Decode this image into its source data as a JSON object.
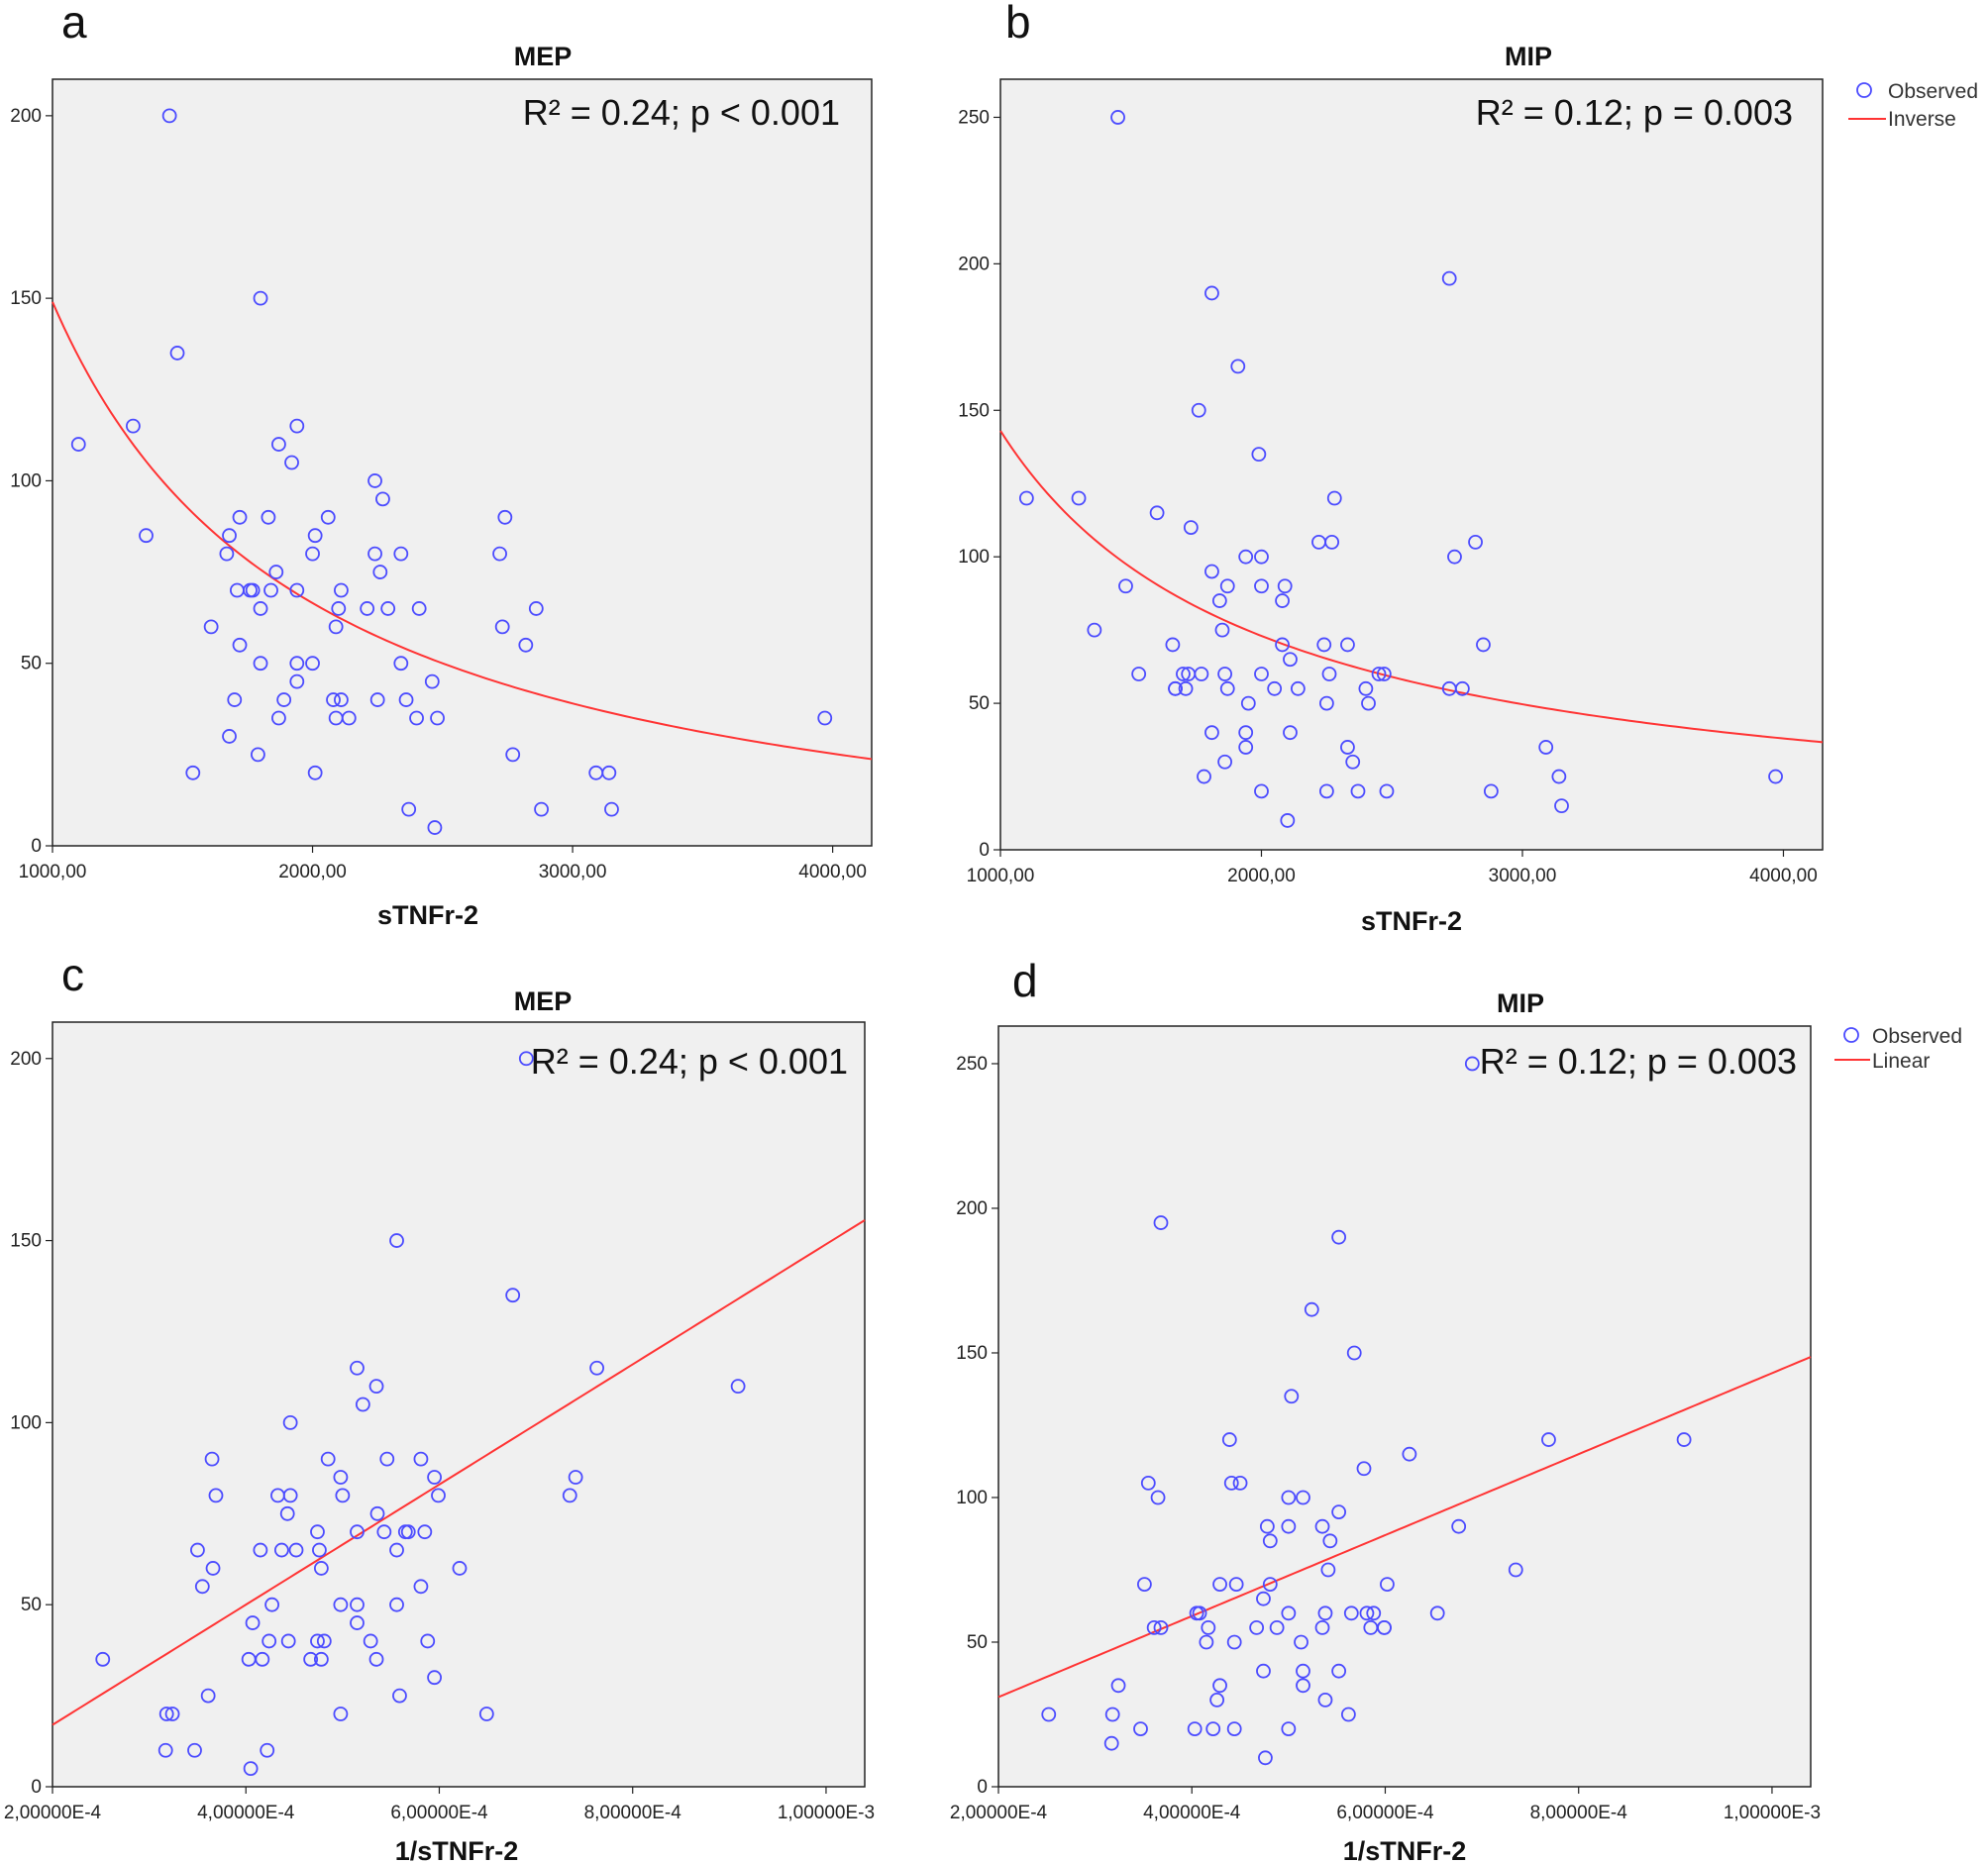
{
  "colors": {
    "observed": "#4b4bff",
    "fit": "#ff3333",
    "plot_bg": "#f0f0f0"
  },
  "chart_data": [
    {
      "panel": "a",
      "type": "scatter",
      "title": "MEP",
      "xlabel": "sTNFr-2",
      "ylabel": "",
      "stat": "R² = 0.24; p < 0.001",
      "fit": "inverse",
      "fit_params": {
        "b0": -16,
        "b1": 165000
      },
      "xlim": [
        1000,
        4150
      ],
      "ylim": [
        0,
        210
      ],
      "x_ticks": [
        1000,
        2000,
        3000,
        4000
      ],
      "x_tick_labels": [
        "1000,00",
        "2000,00",
        "3000,00",
        "4000,00"
      ],
      "y_ticks": [
        0,
        50,
        100,
        150,
        200
      ],
      "y_tick_labels": [
        "0",
        "50",
        "100",
        "150",
        "200"
      ],
      "legend": null,
      "points": [
        [
          1450,
          200
        ],
        [
          1800,
          150
        ],
        [
          1480,
          135
        ],
        [
          1310,
          115
        ],
        [
          1940,
          115
        ],
        [
          1100,
          110
        ],
        [
          1870,
          110
        ],
        [
          1920,
          105
        ],
        [
          2240,
          100
        ],
        [
          1360,
          85
        ],
        [
          2270,
          95
        ],
        [
          1720,
          90
        ],
        [
          1830,
          90
        ],
        [
          2060,
          90
        ],
        [
          2740,
          90
        ],
        [
          1680,
          85
        ],
        [
          2010,
          85
        ],
        [
          1670,
          80
        ],
        [
          2000,
          80
        ],
        [
          2240,
          80
        ],
        [
          2340,
          80
        ],
        [
          2720,
          80
        ],
        [
          1860,
          75
        ],
        [
          2260,
          75
        ],
        [
          1710,
          70
        ],
        [
          1760,
          70
        ],
        [
          1770,
          70
        ],
        [
          1840,
          70
        ],
        [
          1940,
          70
        ],
        [
          2110,
          70
        ],
        [
          1800,
          65
        ],
        [
          2100,
          65
        ],
        [
          2210,
          65
        ],
        [
          2290,
          65
        ],
        [
          2410,
          65
        ],
        [
          2860,
          65
        ],
        [
          1610,
          60
        ],
        [
          2090,
          60
        ],
        [
          2730,
          60
        ],
        [
          1720,
          55
        ],
        [
          2820,
          55
        ],
        [
          1800,
          50
        ],
        [
          1940,
          50
        ],
        [
          2000,
          50
        ],
        [
          2340,
          50
        ],
        [
          1940,
          45
        ],
        [
          2460,
          45
        ],
        [
          1700,
          40
        ],
        [
          1890,
          40
        ],
        [
          2080,
          40
        ],
        [
          2110,
          40
        ],
        [
          2250,
          40
        ],
        [
          2360,
          40
        ],
        [
          1680,
          30
        ],
        [
          1870,
          35
        ],
        [
          2090,
          35
        ],
        [
          2140,
          35
        ],
        [
          2400,
          35
        ],
        [
          2480,
          35
        ],
        [
          3970,
          35
        ],
        [
          1790,
          25
        ],
        [
          2770,
          25
        ],
        [
          1540,
          20
        ],
        [
          2010,
          20
        ],
        [
          3090,
          20
        ],
        [
          3140,
          20
        ],
        [
          2370,
          10
        ],
        [
          2880,
          10
        ],
        [
          3150,
          10
        ],
        [
          2470,
          5
        ]
      ]
    },
    {
      "panel": "b",
      "type": "scatter",
      "title": "MIP",
      "xlabel": "sTNFr-2",
      "ylabel": "",
      "stat": "R² = 0.12; p = 0.003",
      "fit": "inverse",
      "fit_params": {
        "b0": 3,
        "b1": 140000
      },
      "xlim": [
        1000,
        4150
      ],
      "ylim": [
        0,
        263
      ],
      "x_ticks": [
        1000,
        2000,
        3000,
        4000
      ],
      "x_tick_labels": [
        "1000,00",
        "2000,00",
        "3000,00",
        "4000,00"
      ],
      "y_ticks": [
        0,
        50,
        100,
        150,
        200,
        250
      ],
      "y_tick_labels": [
        "0",
        "50",
        "100",
        "150",
        "200",
        "250"
      ],
      "legend": [
        "Observed",
        "Inverse"
      ],
      "points": [
        [
          1450,
          250
        ],
        [
          2720,
          195
        ],
        [
          1810,
          190
        ],
        [
          1910,
          165
        ],
        [
          1760,
          150
        ],
        [
          1990,
          135
        ],
        [
          1100,
          120
        ],
        [
          1300,
          120
        ],
        [
          2280,
          120
        ],
        [
          1600,
          115
        ],
        [
          1730,
          110
        ],
        [
          2220,
          105
        ],
        [
          2270,
          105
        ],
        [
          2820,
          105
        ],
        [
          1940,
          100
        ],
        [
          2000,
          100
        ],
        [
          2740,
          100
        ],
        [
          1810,
          95
        ],
        [
          1480,
          90
        ],
        [
          1870,
          90
        ],
        [
          2000,
          90
        ],
        [
          2090,
          90
        ],
        [
          1840,
          85
        ],
        [
          2080,
          85
        ],
        [
          1360,
          75
        ],
        [
          1850,
          75
        ],
        [
          1660,
          70
        ],
        [
          2080,
          70
        ],
        [
          2240,
          70
        ],
        [
          2330,
          70
        ],
        [
          2850,
          70
        ],
        [
          2110,
          65
        ],
        [
          1530,
          60
        ],
        [
          1700,
          60
        ],
        [
          1720,
          60
        ],
        [
          1770,
          60
        ],
        [
          1860,
          60
        ],
        [
          2000,
          60
        ],
        [
          2260,
          60
        ],
        [
          2450,
          60
        ],
        [
          2470,
          60
        ],
        [
          1670,
          55
        ],
        [
          1670,
          55
        ],
        [
          1710,
          55
        ],
        [
          1870,
          55
        ],
        [
          2050,
          55
        ],
        [
          2140,
          55
        ],
        [
          2400,
          55
        ],
        [
          2720,
          55
        ],
        [
          2770,
          55
        ],
        [
          1950,
          50
        ],
        [
          2250,
          50
        ],
        [
          2410,
          50
        ],
        [
          1810,
          40
        ],
        [
          1940,
          40
        ],
        [
          2110,
          40
        ],
        [
          1940,
          35
        ],
        [
          2330,
          35
        ],
        [
          3090,
          35
        ],
        [
          1860,
          30
        ],
        [
          2350,
          30
        ],
        [
          1780,
          25
        ],
        [
          3140,
          25
        ],
        [
          3970,
          25
        ],
        [
          2000,
          20
        ],
        [
          2250,
          20
        ],
        [
          2370,
          20
        ],
        [
          2480,
          20
        ],
        [
          2880,
          20
        ],
        [
          3150,
          15
        ],
        [
          2100,
          10
        ]
      ]
    },
    {
      "panel": "c",
      "type": "scatter",
      "title": "MEP",
      "xlabel": "1/sTNFr-2",
      "ylabel": "",
      "stat": "R² = 0.24; p < 0.001",
      "fit": "linear",
      "fit_params": {
        "b0": -16,
        "b1": 165000
      },
      "xlim": [
        0.0002,
        0.00104
      ],
      "ylim": [
        0,
        210
      ],
      "x_ticks": [
        0.0002,
        0.0004,
        0.0006,
        0.0008,
        0.001
      ],
      "x_tick_labels": [
        "2,00000E-4",
        "4,00000E-4",
        "6,00000E-4",
        "8,00000E-4",
        "1,00000E-3"
      ],
      "y_ticks": [
        0,
        50,
        100,
        150,
        200
      ],
      "y_tick_labels": [
        "0",
        "50",
        "100",
        "150",
        "200"
      ],
      "legend": null,
      "points": [
        [
          0.00069,
          200
        ],
        [
          0.000556,
          150
        ],
        [
          0.000676,
          135
        ],
        [
          0.000763,
          115
        ],
        [
          0.000515,
          115
        ],
        [
          0.000909,
          110
        ],
        [
          0.000535,
          110
        ],
        [
          0.000521,
          105
        ],
        [
          0.000446,
          100
        ],
        [
          0.000741,
          85
        ],
        [
          0.000546,
          90
        ],
        [
          0.000365,
          90
        ],
        [
          0.000485,
          90
        ],
        [
          0.000581,
          90
        ],
        [
          0.000595,
          85
        ],
        [
          0.000498,
          85
        ],
        [
          0.0005,
          80
        ],
        [
          0.000599,
          80
        ],
        [
          0.000433,
          80
        ],
        [
          0.000446,
          80
        ],
        [
          0.000369,
          80
        ],
        [
          0.000735,
          80
        ],
        [
          0.000443,
          75
        ],
        [
          0.000536,
          75
        ],
        [
          0.000585,
          70
        ],
        [
          0.000568,
          70
        ],
        [
          0.000565,
          70
        ],
        [
          0.000543,
          70
        ],
        [
          0.000515,
          70
        ],
        [
          0.000474,
          70
        ],
        [
          0.000556,
          65
        ],
        [
          0.000476,
          65
        ],
        [
          0.000452,
          65
        ],
        [
          0.000437,
          65
        ],
        [
          0.000415,
          65
        ],
        [
          0.00035,
          65
        ],
        [
          0.000621,
          60
        ],
        [
          0.000478,
          60
        ],
        [
          0.000366,
          60
        ],
        [
          0.000581,
          55
        ],
        [
          0.000355,
          55
        ],
        [
          0.000556,
          50
        ],
        [
          0.000515,
          50
        ],
        [
          0.000498,
          50
        ],
        [
          0.000427,
          50
        ],
        [
          0.000515,
          45
        ],
        [
          0.000407,
          45
        ],
        [
          0.000588,
          40
        ],
        [
          0.000529,
          40
        ],
        [
          0.000481,
          40
        ],
        [
          0.000474,
          40
        ],
        [
          0.000444,
          40
        ],
        [
          0.000424,
          40
        ],
        [
          0.000595,
          30
        ],
        [
          0.000535,
          35
        ],
        [
          0.000478,
          35
        ],
        [
          0.000467,
          35
        ],
        [
          0.000417,
          35
        ],
        [
          0.000403,
          35
        ],
        [
          0.000252,
          35
        ],
        [
          0.000559,
          25
        ],
        [
          0.000361,
          25
        ],
        [
          0.000649,
          20
        ],
        [
          0.000498,
          20
        ],
        [
          0.000324,
          20
        ],
        [
          0.000318,
          20
        ],
        [
          0.000422,
          10
        ],
        [
          0.000347,
          10
        ],
        [
          0.000317,
          10
        ],
        [
          0.000405,
          5
        ]
      ]
    },
    {
      "panel": "d",
      "type": "scatter",
      "title": "MIP",
      "xlabel": "1/sTNFr-2",
      "ylabel": "",
      "stat": "R² = 0.12; p = 0.003",
      "fit": "linear",
      "fit_params": {
        "b0": 3,
        "b1": 140000
      },
      "xlim": [
        0.0002,
        0.00104
      ],
      "ylim": [
        0,
        263
      ],
      "x_ticks": [
        0.0002,
        0.0004,
        0.0006,
        0.0008,
        0.001
      ],
      "x_tick_labels": [
        "2,00000E-4",
        "4,00000E-4",
        "6,00000E-4",
        "8,00000E-4",
        "1,00000E-3"
      ],
      "y_ticks": [
        0,
        50,
        100,
        150,
        200,
        250
      ],
      "y_tick_labels": [
        "0",
        "50",
        "100",
        "150",
        "200",
        "250"
      ],
      "legend": [
        "Observed",
        "Linear"
      ],
      "points": [
        [
          0.00069,
          250
        ],
        [
          0.000368,
          195
        ],
        [
          0.000552,
          190
        ],
        [
          0.000524,
          165
        ],
        [
          0.000568,
          150
        ],
        [
          0.000503,
          135
        ],
        [
          0.000909,
          120
        ],
        [
          0.000769,
          120
        ],
        [
          0.000439,
          120
        ],
        [
          0.000625,
          115
        ],
        [
          0.000578,
          110
        ],
        [
          0.00045,
          105
        ],
        [
          0.000441,
          105
        ],
        [
          0.000355,
          105
        ],
        [
          0.000515,
          100
        ],
        [
          0.0005,
          100
        ],
        [
          0.000365,
          100
        ],
        [
          0.000552,
          95
        ],
        [
          0.000676,
          90
        ],
        [
          0.000535,
          90
        ],
        [
          0.0005,
          90
        ],
        [
          0.000478,
          90
        ],
        [
          0.000543,
          85
        ],
        [
          0.000481,
          85
        ],
        [
          0.000735,
          75
        ],
        [
          0.000541,
          75
        ],
        [
          0.000602,
          70
        ],
        [
          0.000481,
          70
        ],
        [
          0.000446,
          70
        ],
        [
          0.000429,
          70
        ],
        [
          0.000351,
          70
        ],
        [
          0.000474,
          65
        ],
        [
          0.000654,
          60
        ],
        [
          0.000588,
          60
        ],
        [
          0.000581,
          60
        ],
        [
          0.000565,
          60
        ],
        [
          0.000538,
          60
        ],
        [
          0.0005,
          60
        ],
        [
          0.000408,
          60
        ],
        [
          0.000405,
          60
        ],
        [
          0.000599,
          55
        ],
        [
          0.000599,
          55
        ],
        [
          0.000585,
          55
        ],
        [
          0.000535,
          55
        ],
        [
          0.000488,
          55
        ],
        [
          0.000467,
          55
        ],
        [
          0.000417,
          55
        ],
        [
          0.000368,
          55
        ],
        [
          0.000361,
          55
        ],
        [
          0.000513,
          50
        ],
        [
          0.000444,
          50
        ],
        [
          0.000415,
          50
        ],
        [
          0.000552,
          40
        ],
        [
          0.000515,
          40
        ],
        [
          0.000474,
          40
        ],
        [
          0.000515,
          35
        ],
        [
          0.000429,
          35
        ],
        [
          0.000324,
          35
        ],
        [
          0.000538,
          30
        ],
        [
          0.000426,
          30
        ],
        [
          0.000562,
          25
        ],
        [
          0.000318,
          25
        ],
        [
          0.000252,
          25
        ],
        [
          0.0005,
          20
        ],
        [
          0.000444,
          20
        ],
        [
          0.000422,
          20
        ],
        [
          0.000403,
          20
        ],
        [
          0.000347,
          20
        ],
        [
          0.000317,
          15
        ],
        [
          0.000476,
          10
        ]
      ]
    }
  ]
}
